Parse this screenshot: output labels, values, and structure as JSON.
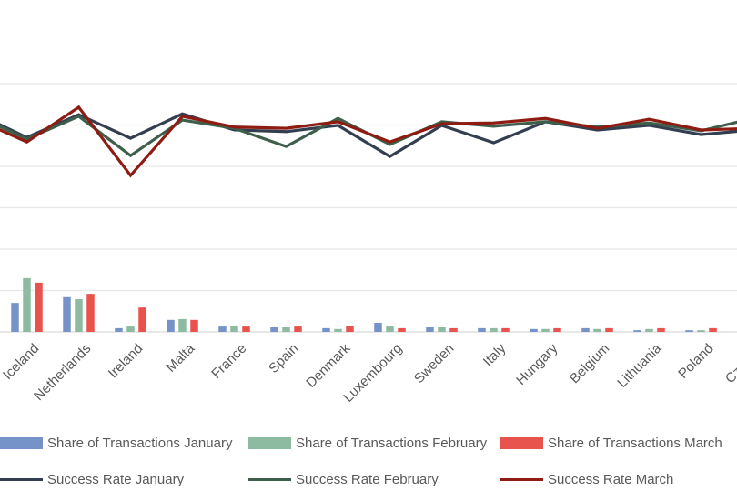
{
  "chart_data": {
    "type": "combo",
    "note": "Excel-style combo chart cropped on all sides: no title and no axis tick labels are visible in the screenshot. Values are estimated in gridline units (1 unit = one horizontal gridline spacing above the category axis). First and last categories are partially cut off at the image edges; an additional line-series vertex from a cut-off category enters from the left edge.",
    "categories": [
      "Iceland",
      "Netherlands",
      "Ireland",
      "Malta",
      "France",
      "Spain",
      "Denmark",
      "Luxembourg",
      "Sweden",
      "Italy",
      "Hungary",
      "Belgium",
      "Lithuania",
      "Poland",
      "Czechia"
    ],
    "first_category_partially_cut": true,
    "last_category_partially_cut": true,
    "bar_series": [
      {
        "name": "Share of Transactions January",
        "color": "#7593C9",
        "values": [
          0.7,
          0.84,
          0.09,
          0.29,
          0.13,
          0.11,
          0.09,
          0.22,
          0.11,
          0.09,
          0.07,
          0.09,
          0.04,
          0.04,
          null
        ]
      },
      {
        "name": "Share of Transactions February",
        "color": "#8DBBA2",
        "values": [
          1.3,
          0.79,
          0.13,
          0.31,
          0.15,
          0.11,
          0.07,
          0.13,
          0.11,
          0.09,
          0.07,
          0.07,
          0.07,
          0.04,
          null
        ]
      },
      {
        "name": "Share of Transactions March",
        "color": "#E9534E",
        "values": [
          1.19,
          0.92,
          0.59,
          0.29,
          0.13,
          0.13,
          0.15,
          0.09,
          0.09,
          0.09,
          0.09,
          0.09,
          0.09,
          0.09,
          null
        ]
      }
    ],
    "line_series": [
      {
        "name": "Success Rate January",
        "color": "#333F50",
        "lead_in_value": 5.3,
        "values": [
          4.7,
          5.25,
          4.68,
          5.27,
          4.88,
          4.84,
          4.99,
          4.24,
          4.99,
          4.57,
          5.08,
          4.88,
          4.99,
          4.77,
          4.88
        ]
      },
      {
        "name": "Success Rate February",
        "color": "#3E5F4C",
        "lead_in_value": 5.25,
        "values": [
          4.66,
          5.21,
          4.26,
          5.12,
          4.92,
          4.48,
          5.16,
          4.53,
          5.08,
          4.97,
          5.08,
          4.95,
          5.05,
          4.86,
          5.16
        ]
      },
      {
        "name": "Success Rate March",
        "color": "#8E1C12",
        "lead_in_value": 5.16,
        "values": [
          4.59,
          5.43,
          3.78,
          5.21,
          4.95,
          4.92,
          5.08,
          4.59,
          5.03,
          5.05,
          5.16,
          4.92,
          5.14,
          4.88,
          4.92
        ]
      }
    ],
    "legend": {
      "position": "bottom",
      "rows": [
        [
          "Share of Transactions January",
          "Share of Transactions February",
          "Share of Transactions March"
        ],
        [
          "Success Rate January",
          "Success Rate February",
          "Success Rate March"
        ]
      ]
    },
    "gridlines": {
      "visible": true,
      "count": 7,
      "color": "#E7E7E7"
    },
    "axis": {
      "baseline_color": "#D9D9D9",
      "label_color": "#595959"
    }
  }
}
